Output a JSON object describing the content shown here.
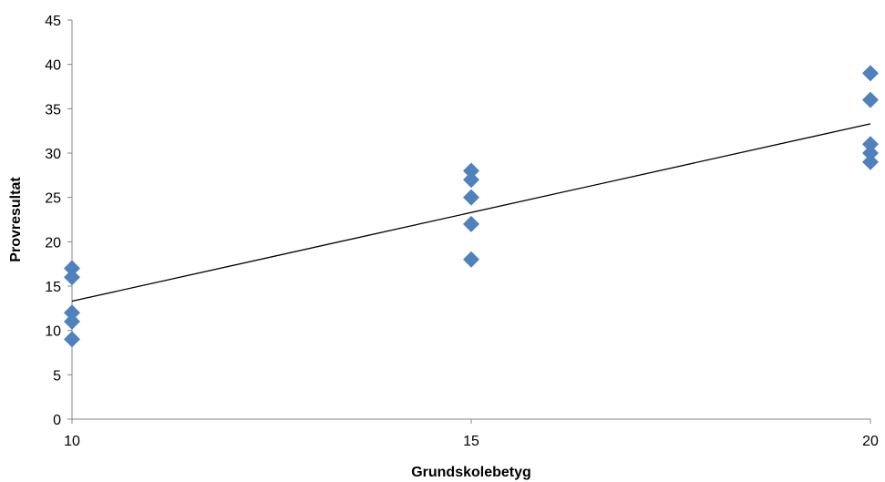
{
  "chart_data": {
    "type": "scatter",
    "title": "",
    "xlabel": "Grundskolebetyg",
    "ylabel": "Provresultat",
    "xlim": [
      10,
      20
    ],
    "ylim": [
      0,
      45
    ],
    "x_ticks": [
      10,
      15,
      20
    ],
    "y_ticks": [
      0,
      5,
      10,
      15,
      20,
      25,
      30,
      35,
      40,
      45
    ],
    "grid": false,
    "legend": "none",
    "marker": "diamond",
    "marker_color": "#4f81bd",
    "series": [
      {
        "points": [
          {
            "x": 10,
            "y": 17
          },
          {
            "x": 10,
            "y": 16
          },
          {
            "x": 10,
            "y": 12
          },
          {
            "x": 10,
            "y": 11
          },
          {
            "x": 10,
            "y": 9
          },
          {
            "x": 15,
            "y": 28
          },
          {
            "x": 15,
            "y": 27
          },
          {
            "x": 15,
            "y": 25
          },
          {
            "x": 15,
            "y": 22
          },
          {
            "x": 15,
            "y": 18
          },
          {
            "x": 20,
            "y": 39
          },
          {
            "x": 20,
            "y": 36
          },
          {
            "x": 20,
            "y": 31
          },
          {
            "x": 20,
            "y": 30
          },
          {
            "x": 20,
            "y": 29
          }
        ]
      }
    ],
    "trendline": {
      "type": "linear",
      "color": "#000000",
      "from": {
        "x": 10,
        "y": 13.3
      },
      "to": {
        "x": 20,
        "y": 33.3
      }
    }
  }
}
